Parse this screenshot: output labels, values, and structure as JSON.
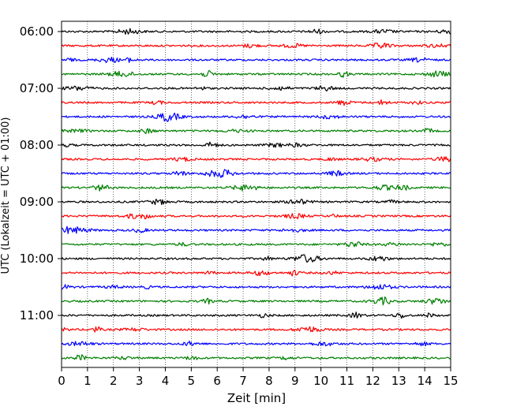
{
  "chart_data": {
    "type": "line",
    "title": "",
    "xlabel": "Zeit  [min]",
    "ylabel": "UTC (Lokalzeit = UTC + 01:00)",
    "xlim": [
      0,
      15
    ],
    "x_ticks": [
      "0",
      "1",
      "2",
      "3",
      "4",
      "5",
      "6",
      "7",
      "8",
      "9",
      "10",
      "11",
      "12",
      "13",
      "14",
      "15"
    ],
    "y_ticks": [
      "06:00",
      "07:00",
      "08:00",
      "09:00",
      "10:00",
      "11:00"
    ],
    "grid": "vertical dotted",
    "trace_colors": [
      "#000000",
      "#ff0000",
      "#0000ff",
      "#008000"
    ],
    "traces": [
      {
        "start": "06:00",
        "color": "#000000"
      },
      {
        "start": "06:15",
        "color": "#ff0000"
      },
      {
        "start": "06:30",
        "color": "#0000ff"
      },
      {
        "start": "06:45",
        "color": "#008000"
      },
      {
        "start": "07:00",
        "color": "#000000"
      },
      {
        "start": "07:15",
        "color": "#ff0000"
      },
      {
        "start": "07:30",
        "color": "#0000ff"
      },
      {
        "start": "07:45",
        "color": "#008000"
      },
      {
        "start": "08:00",
        "color": "#000000"
      },
      {
        "start": "08:15",
        "color": "#ff0000"
      },
      {
        "start": "08:30",
        "color": "#0000ff"
      },
      {
        "start": "08:45",
        "color": "#008000"
      },
      {
        "start": "09:00",
        "color": "#000000"
      },
      {
        "start": "09:15",
        "color": "#ff0000"
      },
      {
        "start": "09:30",
        "color": "#0000ff"
      },
      {
        "start": "09:45",
        "color": "#008000"
      },
      {
        "start": "10:00",
        "color": "#000000"
      },
      {
        "start": "10:15",
        "color": "#ff0000"
      },
      {
        "start": "10:30",
        "color": "#0000ff"
      },
      {
        "start": "10:45",
        "color": "#008000"
      },
      {
        "start": "11:00",
        "color": "#000000"
      },
      {
        "start": "11:15",
        "color": "#ff0000"
      },
      {
        "start": "11:30",
        "color": "#0000ff"
      },
      {
        "start": "11:45",
        "color": "#008000"
      }
    ]
  }
}
